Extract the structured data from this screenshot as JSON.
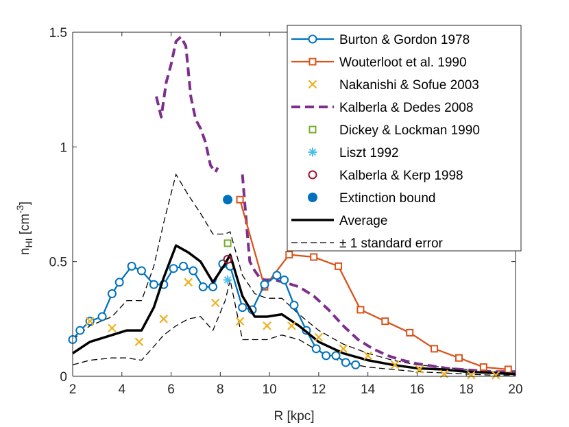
{
  "chart_data": {
    "type": "line",
    "title": "",
    "xlabel": "R [kpc]",
    "ylabel": "n_HI [cm^-3]",
    "ylabel_main": "n",
    "ylabel_sub": "HI",
    "ylabel_unit": " [cm",
    "ylabel_exp": "-3",
    "ylabel_close": "]",
    "xlim": [
      2,
      20
    ],
    "ylim": [
      0,
      1.5
    ],
    "xticks": [
      2,
      4,
      6,
      8,
      10,
      12,
      14,
      16,
      18,
      20
    ],
    "yticks": [
      0,
      0.5,
      1,
      1.5
    ],
    "ytick_labels": [
      "0",
      "0.5",
      "1",
      "1.5"
    ],
    "grid": false,
    "legend_position": "top-right",
    "series": [
      {
        "name": "Burton & Gordon 1978",
        "style": "line-circle",
        "color": "#0072BD",
        "x": [
          2.0,
          2.3,
          2.7,
          3.2,
          3.6,
          3.9,
          4.4,
          4.8,
          5.3,
          5.7,
          6.1,
          6.5,
          6.9,
          7.3,
          7.7,
          8.1,
          8.4,
          8.9,
          9.3,
          9.8,
          10.3,
          10.6,
          11.0,
          11.5,
          11.9,
          12.3,
          12.7,
          13.1,
          13.5
        ],
        "y": [
          0.16,
          0.2,
          0.24,
          0.26,
          0.36,
          0.41,
          0.48,
          0.46,
          0.4,
          0.4,
          0.47,
          0.48,
          0.46,
          0.39,
          0.39,
          0.49,
          0.48,
          0.3,
          0.29,
          0.4,
          0.44,
          0.42,
          0.31,
          0.2,
          0.12,
          0.09,
          0.09,
          0.06,
          0.05
        ]
      },
      {
        "name": "Wouterloot et al. 1990",
        "style": "line-square",
        "color": "#D95319",
        "x": [
          8.8,
          9.8,
          10.8,
          11.8,
          12.8,
          13.7,
          14.7,
          15.7,
          16.7,
          17.7,
          18.7,
          19.7
        ],
        "y": [
          0.77,
          0.39,
          0.53,
          0.52,
          0.48,
          0.29,
          0.24,
          0.19,
          0.12,
          0.08,
          0.04,
          0.03
        ]
      },
      {
        "name": "Nakanishi & Sofue 2003",
        "style": "marker-x",
        "color": "#EDB120",
        "x": [
          2.7,
          3.6,
          4.7,
          5.7,
          6.7,
          7.8,
          8.8,
          9.9,
          10.9,
          12.0,
          13.0,
          14.0,
          15.1,
          16.1,
          17.1,
          18.2,
          19.2
        ],
        "y": [
          0.24,
          0.21,
          0.15,
          0.25,
          0.41,
          0.32,
          0.24,
          0.22,
          0.22,
          0.17,
          0.12,
          0.09,
          0.05,
          0.03,
          0.01,
          0.005,
          0.005
        ]
      },
      {
        "name": "Kalberla & Dedes 2008",
        "style": "dashed",
        "color": "#7E2F8E",
        "segments": [
          {
            "x": [
              5.4,
              5.6,
              5.8,
              6.0,
              6.2,
              6.4,
              6.6,
              6.8,
              7.0,
              7.2,
              7.4,
              7.6,
              7.8,
              7.9
            ],
            "y": [
              1.22,
              1.13,
              1.28,
              1.36,
              1.46,
              1.48,
              1.44,
              1.22,
              1.12,
              1.08,
              1.02,
              0.92,
              0.89,
              0.91
            ]
          },
          {
            "x": [
              8.9,
              9.0,
              9.1,
              9.2,
              9.4,
              9.6,
              9.8,
              10.2,
              10.6,
              11.2,
              11.8,
              12.4,
              13.0,
              13.6,
              14.2,
              14.8,
              15.4,
              16.0,
              16.6,
              17.2,
              17.8,
              18.4,
              19.0,
              19.6,
              20.0
            ],
            "y": [
              0.88,
              0.75,
              0.62,
              0.5,
              0.46,
              0.43,
              0.42,
              0.42,
              0.41,
              0.39,
              0.35,
              0.29,
              0.22,
              0.16,
              0.12,
              0.09,
              0.07,
              0.055,
              0.045,
              0.035,
              0.03,
              0.025,
              0.02,
              0.02,
              0.02
            ]
          }
        ]
      },
      {
        "name": "Dickey & Lockman 1990",
        "style": "marker-square",
        "color": "#77AC30",
        "x": [
          8.3
        ],
        "y": [
          0.58
        ]
      },
      {
        "name": "Liszt 1992",
        "style": "marker-asterisk",
        "color": "#4DBEEE",
        "x": [
          8.3
        ],
        "y": [
          0.42
        ]
      },
      {
        "name": "Kalberla & Kerp 1998",
        "style": "marker-circle",
        "color": "#A2142F",
        "x": [
          8.3
        ],
        "y": [
          0.51
        ]
      },
      {
        "name": "Extinction bound",
        "style": "marker-filled-circle",
        "color": "#0072BD",
        "x": [
          8.3
        ],
        "y": [
          0.77
        ]
      },
      {
        "name": "Average",
        "style": "thick-line",
        "color": "#000000",
        "x": [
          2.0,
          2.7,
          3.6,
          4.2,
          4.8,
          5.3,
          5.7,
          6.2,
          6.7,
          7.2,
          7.7,
          8.2,
          8.4,
          8.9,
          9.4,
          9.9,
          10.5,
          11.2,
          12.0,
          13.0,
          14.0,
          15.0,
          16.0,
          17.0,
          18.0,
          19.0,
          20.0
        ],
        "y": [
          0.1,
          0.15,
          0.18,
          0.2,
          0.2,
          0.3,
          0.43,
          0.57,
          0.54,
          0.5,
          0.41,
          0.49,
          0.53,
          0.35,
          0.26,
          0.26,
          0.27,
          0.22,
          0.15,
          0.1,
          0.07,
          0.05,
          0.035,
          0.03,
          0.02,
          0.015,
          0.01
        ]
      },
      {
        "name": "± 1 standard error",
        "style": "thin-dashed",
        "color": "#000000",
        "bands": [
          {
            "x": [
              2.0,
              2.7,
              3.6,
              4.2,
              4.8,
              5.3,
              5.7,
              6.2,
              6.7,
              7.2,
              7.7,
              8.2,
              8.4,
              8.9,
              9.4,
              9.9,
              10.5,
              11.2,
              12.0,
              13.0,
              14.0,
              15.0,
              16.0,
              17.0,
              18.0,
              19.0,
              20.0
            ],
            "y": [
              0.16,
              0.22,
              0.26,
              0.33,
              0.33,
              0.48,
              0.67,
              0.88,
              0.79,
              0.71,
              0.62,
              0.62,
              0.63,
              0.44,
              0.36,
              0.34,
              0.34,
              0.27,
              0.2,
              0.14,
              0.1,
              0.07,
              0.05,
              0.04,
              0.03,
              0.02,
              0.015
            ]
          },
          {
            "x": [
              2.0,
              2.7,
              3.6,
              4.2,
              4.8,
              5.3,
              5.7,
              6.2,
              6.7,
              7.2,
              7.7,
              8.2,
              8.4,
              8.9,
              9.4,
              9.9,
              10.5,
              11.2,
              12.0,
              13.0,
              14.0,
              15.0,
              16.0,
              17.0,
              18.0,
              19.0,
              20.0
            ],
            "y": [
              0.05,
              0.07,
              0.08,
              0.08,
              0.07,
              0.13,
              0.18,
              0.22,
              0.25,
              0.26,
              0.2,
              0.33,
              0.42,
              0.16,
              0.16,
              0.16,
              0.18,
              0.16,
              0.11,
              0.06,
              0.04,
              0.03,
              0.02,
              0.015,
              0.01,
              0.005,
              0.005
            ]
          }
        ]
      }
    ]
  }
}
